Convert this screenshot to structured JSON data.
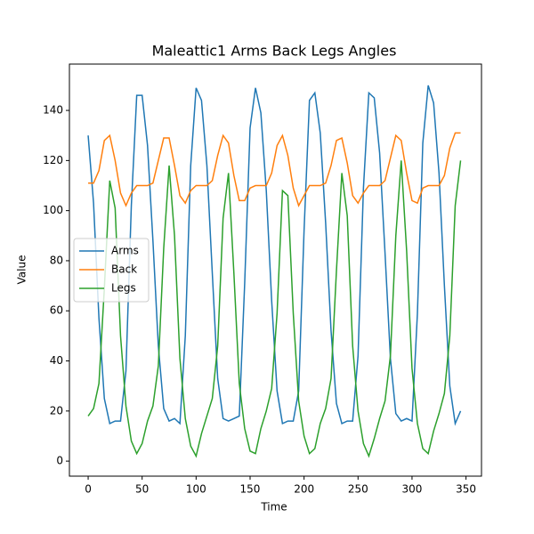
{
  "chart_data": {
    "type": "line",
    "title": "Maleattic1 Arms Back Legs Angles",
    "x_label": "Time",
    "y_label": "Value",
    "x": [
      0,
      5,
      10,
      15,
      20,
      25,
      30,
      35,
      40,
      45,
      50,
      55,
      60,
      65,
      70,
      75,
      80,
      85,
      90,
      95,
      100,
      105,
      110,
      115,
      120,
      125,
      130,
      135,
      140,
      145,
      150,
      155,
      160,
      165,
      170,
      175,
      180,
      185,
      190,
      195,
      200,
      205,
      210,
      215,
      220,
      225,
      230,
      235,
      240,
      245,
      250,
      255,
      260,
      265,
      270,
      275,
      280,
      285,
      290,
      295,
      300,
      305,
      310,
      315,
      320,
      325,
      330,
      335,
      340,
      345
    ],
    "series": [
      {
        "name": "Arms",
        "color": "#1f77b4",
        "values": [
          130,
          103,
          57,
          25,
          15,
          16,
          16,
          36,
          102,
          146,
          146,
          126,
          88,
          46,
          21,
          16,
          17,
          15,
          50,
          118,
          149,
          144,
          118,
          75,
          33,
          17,
          16,
          17,
          18,
          71,
          133,
          149,
          139,
          108,
          64,
          28,
          15,
          16,
          16,
          28,
          92,
          144,
          147,
          131,
          95,
          52,
          23,
          15,
          16,
          16,
          42,
          109,
          147,
          145,
          123,
          83,
          41,
          19,
          16,
          17,
          16,
          59,
          127,
          150,
          143,
          115,
          70,
          30,
          15,
          20
        ]
      },
      {
        "name": "Back",
        "color": "#ff7f0e",
        "values": [
          111,
          111,
          116,
          128,
          130,
          120,
          107,
          102,
          107,
          110,
          110,
          110,
          111,
          120,
          129,
          129,
          118,
          106,
          103,
          108,
          110,
          110,
          110,
          112,
          122,
          130,
          127,
          114,
          104,
          104,
          109,
          110,
          110,
          110,
          115,
          126,
          130,
          122,
          109,
          102,
          106,
          110,
          110,
          110,
          111,
          118,
          128,
          129,
          119,
          106,
          103,
          107,
          110,
          110,
          110,
          112,
          121,
          130,
          128,
          115,
          104,
          103,
          109,
          110,
          110,
          110,
          114,
          125,
          131,
          131
        ]
      },
      {
        "name": "Legs",
        "color": "#2ca02c",
        "values": [
          18,
          21,
          31,
          69,
          112,
          101,
          50,
          22,
          8,
          3,
          7,
          16,
          22,
          38,
          85,
          118,
          90,
          41,
          17,
          6,
          2,
          11,
          18,
          25,
          46,
          97,
          115,
          75,
          31,
          13,
          4,
          3,
          13,
          20,
          29,
          59,
          108,
          106,
          59,
          24,
          10,
          3,
          5,
          15,
          21,
          33,
          76,
          115,
          98,
          46,
          20,
          7,
          2,
          9,
          17,
          24,
          42,
          90,
          120,
          84,
          37,
          15,
          5,
          3,
          12,
          19,
          27,
          50,
          102,
          120
        ]
      }
    ],
    "xlim": [
      -17.35,
      364.35
    ],
    "ylim": [
      -6,
      158.5
    ],
    "xticks": [
      0,
      50,
      100,
      150,
      200,
      250,
      300,
      350
    ],
    "yticks": [
      0,
      20,
      40,
      60,
      80,
      100,
      120,
      140
    ],
    "legend": "center left"
  }
}
